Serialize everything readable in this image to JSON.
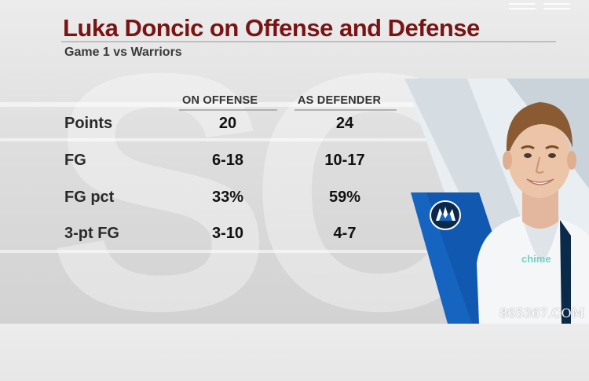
{
  "graphic": {
    "title": "Luka Doncic on Offense and Defense",
    "subtitle": "Game 1 vs Warriors",
    "columns": [
      "ON OFFENSE",
      "AS DEFENDER"
    ],
    "rows": [
      {
        "label": "Points",
        "offense": "20",
        "defender": "24"
      },
      {
        "label": "FG",
        "offense": "6-18",
        "defender": "10-17"
      },
      {
        "label": "FG pct",
        "offense": "33%",
        "defender": "59%"
      },
      {
        "label": "3-pt FG",
        "offense": "3-10",
        "defender": "4-7"
      }
    ],
    "jersey_sponsor": "chime",
    "watermark": "865367.COM",
    "colors": {
      "title": "#7a1414",
      "team_blue": "#1565c0",
      "team_navy": "#0b2a4a"
    }
  }
}
